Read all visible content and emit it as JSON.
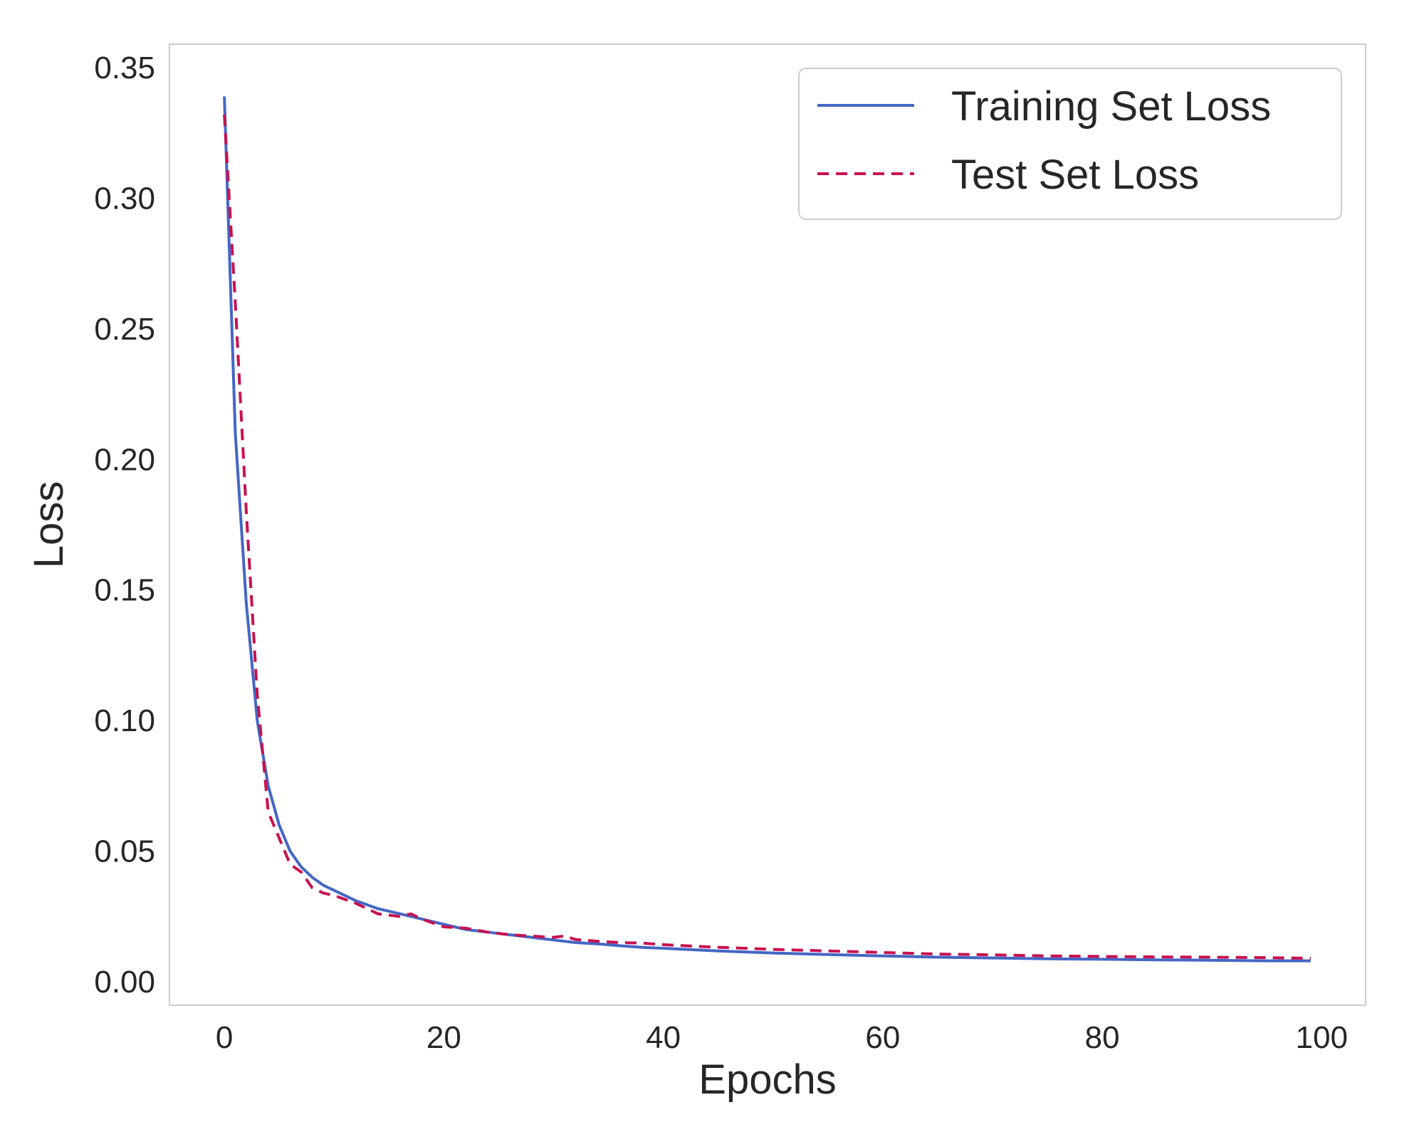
{
  "chart_data": {
    "type": "line",
    "title": "",
    "xlabel": "Epochs",
    "ylabel": "Loss",
    "xlim": [
      -5,
      104
    ],
    "ylim": [
      -0.009,
      0.359
    ],
    "xticks": [
      0,
      20,
      40,
      60,
      80,
      100
    ],
    "xtick_labels": [
      "0",
      "20",
      "40",
      "60",
      "80",
      "100"
    ],
    "yticks": [
      0.0,
      0.05,
      0.1,
      0.15,
      0.2,
      0.25,
      0.3,
      0.35
    ],
    "ytick_labels": [
      "0.00",
      "0.05",
      "0.10",
      "0.15",
      "0.20",
      "0.25",
      "0.30",
      "0.35"
    ],
    "grid": false,
    "legend_position": "top-right",
    "series": [
      {
        "name": "Training Set Loss",
        "color": "#4466c4",
        "style": "solid",
        "x": [
          0,
          1,
          2,
          3,
          4,
          5,
          6,
          7,
          8,
          9,
          10,
          12,
          14,
          16,
          18,
          20,
          22,
          24,
          26,
          28,
          30,
          32,
          34,
          36,
          38,
          40,
          45,
          50,
          55,
          60,
          65,
          70,
          75,
          80,
          85,
          90,
          95,
          99
        ],
        "y": [
          0.339,
          0.21,
          0.145,
          0.1,
          0.075,
          0.06,
          0.05,
          0.044,
          0.04,
          0.037,
          0.035,
          0.031,
          0.028,
          0.026,
          0.024,
          0.022,
          0.02,
          0.019,
          0.018,
          0.017,
          0.016,
          0.015,
          0.0145,
          0.0138,
          0.0132,
          0.0128,
          0.0118,
          0.011,
          0.0104,
          0.0099,
          0.0094,
          0.0091,
          0.0088,
          0.0086,
          0.0084,
          0.0082,
          0.008,
          0.008
        ]
      },
      {
        "name": "Test Set Loss",
        "color": "#c8114f",
        "style": "dashed",
        "x": [
          0,
          1,
          2,
          3,
          4,
          5,
          6,
          7,
          8,
          9,
          10,
          12,
          14,
          16,
          17,
          18,
          20,
          22,
          24,
          26,
          28,
          30,
          31,
          32,
          34,
          36,
          38,
          40,
          45,
          50,
          55,
          60,
          65,
          70,
          75,
          80,
          85,
          90,
          95,
          99
        ],
        "y": [
          0.332,
          0.26,
          0.18,
          0.11,
          0.065,
          0.055,
          0.045,
          0.042,
          0.036,
          0.034,
          0.033,
          0.03,
          0.026,
          0.025,
          0.026,
          0.024,
          0.021,
          0.0205,
          0.019,
          0.018,
          0.0175,
          0.017,
          0.0175,
          0.0162,
          0.0155,
          0.015,
          0.0148,
          0.0142,
          0.0132,
          0.0124,
          0.0118,
          0.0112,
          0.0106,
          0.0103,
          0.0099,
          0.0097,
          0.0095,
          0.0094,
          0.0092,
          0.009
        ]
      }
    ]
  }
}
